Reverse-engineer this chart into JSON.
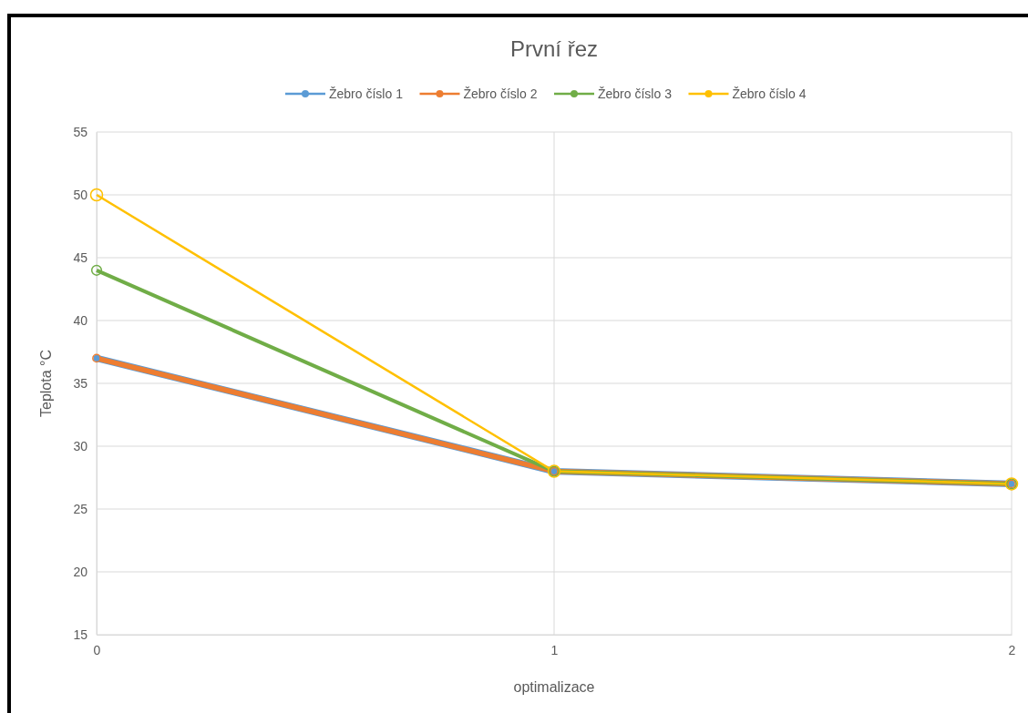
{
  "chart_data": {
    "type": "line",
    "title": "První řez",
    "xlabel": "optimalizace",
    "ylabel": "Teplota °C",
    "x": [
      0,
      1,
      2
    ],
    "xlim": [
      0,
      2
    ],
    "xticks": [
      0,
      1,
      2
    ],
    "ylim": [
      15,
      55
    ],
    "yticks": [
      15,
      20,
      25,
      30,
      35,
      40,
      45,
      50,
      55
    ],
    "grid": true,
    "legend": "top",
    "marker": "circle",
    "line_style": "solid",
    "series": [
      {
        "name": "Žebro číslo 1",
        "color": "#5b9bd5",
        "values": [
          37,
          28,
          27
        ]
      },
      {
        "name": "Žebro číslo 2",
        "color": "#ed7d31",
        "values": [
          37,
          28,
          27
        ]
      },
      {
        "name": "Žebro číslo 3",
        "color": "#70ad47",
        "values": [
          44,
          28,
          27
        ]
      },
      {
        "name": "Žebro číslo 4",
        "color": "#ffc000",
        "values": [
          50,
          28,
          27
        ]
      }
    ]
  }
}
